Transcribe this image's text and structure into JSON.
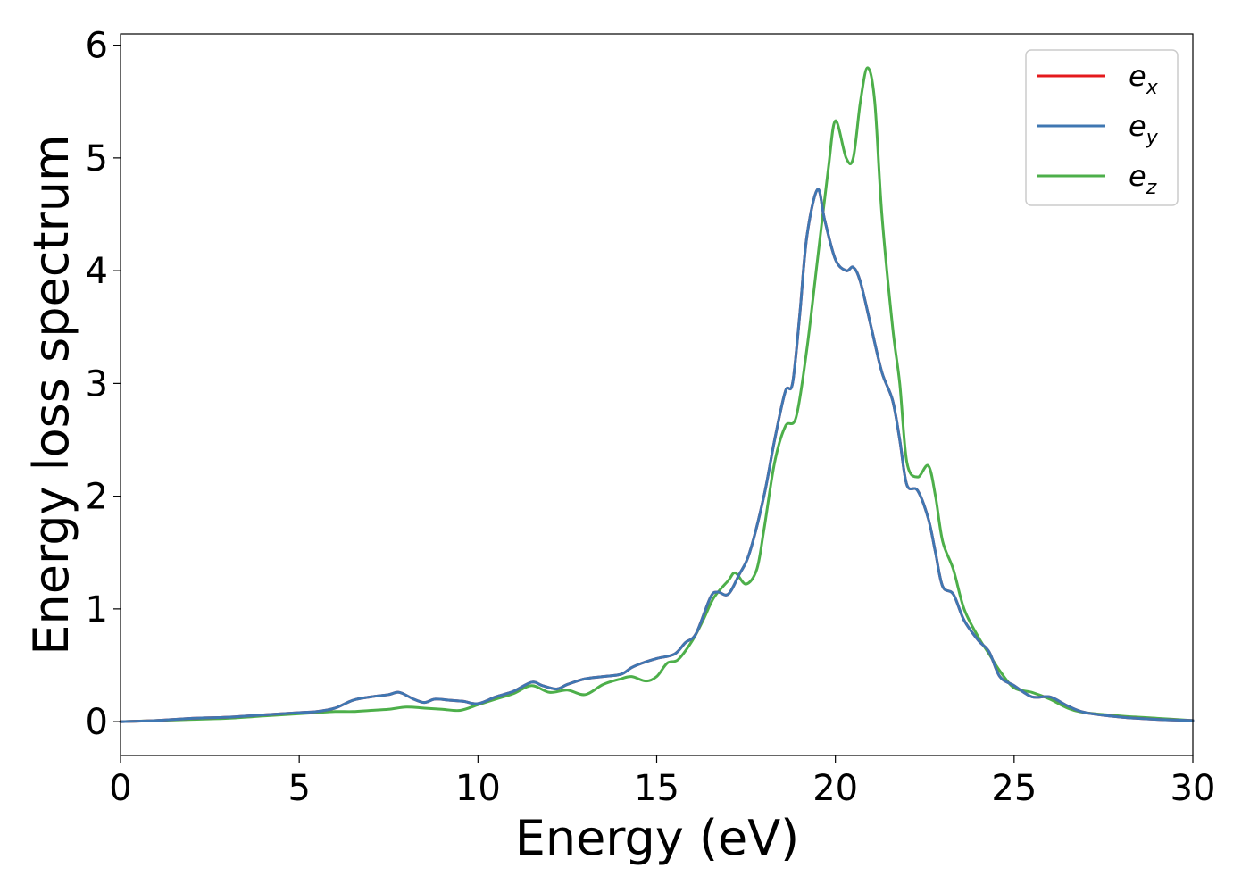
{
  "chart_data": {
    "type": "line",
    "xlabel": "Energy (eV)",
    "ylabel": "Energy loss spectrum",
    "xlim": [
      0,
      30
    ],
    "ylim": [
      -0.3,
      6.1
    ],
    "xticks": [
      0,
      5,
      10,
      15,
      20,
      25,
      30
    ],
    "xtick_labels": [
      "0",
      "5",
      "10",
      "15",
      "20",
      "25",
      "30"
    ],
    "yticks": [
      0,
      1,
      2,
      3,
      4,
      5,
      6
    ],
    "ytick_labels": [
      "0",
      "1",
      "2",
      "3",
      "4",
      "5",
      "6"
    ],
    "grid": false,
    "legend_position": "top-right",
    "series": [
      {
        "name": "e",
        "subscript": "x",
        "color": "#e41a1c",
        "x": [
          0,
          1,
          2,
          3,
          4,
          5,
          5.5,
          6,
          6.5,
          7,
          7.5,
          7.8,
          8.2,
          8.5,
          8.8,
          9.2,
          9.6,
          10,
          10.5,
          11,
          11.5,
          11.8,
          12.2,
          12.5,
          13,
          13.5,
          14,
          14.3,
          14.6,
          15,
          15.5,
          15.8,
          16.1,
          16.5,
          16.7,
          17,
          17.3,
          17.6,
          18,
          18.3,
          18.6,
          18.8,
          19,
          19.2,
          19.5,
          19.7,
          20,
          20.3,
          20.5,
          20.7,
          21,
          21.3,
          21.6,
          21.8,
          22,
          22.3,
          22.6,
          22.8,
          23,
          23.3,
          23.6,
          24,
          24.3,
          24.6,
          25,
          25.5,
          26,
          26.5,
          27,
          28,
          29,
          30
        ],
        "y": [
          0,
          0.01,
          0.03,
          0.04,
          0.06,
          0.08,
          0.09,
          0.12,
          0.19,
          0.22,
          0.24,
          0.26,
          0.2,
          0.17,
          0.2,
          0.19,
          0.18,
          0.16,
          0.22,
          0.27,
          0.35,
          0.32,
          0.29,
          0.33,
          0.38,
          0.4,
          0.42,
          0.48,
          0.52,
          0.56,
          0.6,
          0.7,
          0.78,
          1.1,
          1.15,
          1.13,
          1.3,
          1.5,
          2.0,
          2.5,
          2.93,
          3.0,
          3.6,
          4.3,
          4.72,
          4.45,
          4.1,
          4.0,
          4.03,
          3.9,
          3.5,
          3.1,
          2.85,
          2.5,
          2.1,
          2.05,
          1.8,
          1.5,
          1.2,
          1.13,
          0.9,
          0.72,
          0.62,
          0.4,
          0.32,
          0.22,
          0.22,
          0.14,
          0.08,
          0.04,
          0.02,
          0.01
        ]
      },
      {
        "name": "e",
        "subscript": "y",
        "color": "#3f77b2",
        "x": [
          0,
          1,
          2,
          3,
          4,
          5,
          5.5,
          6,
          6.5,
          7,
          7.5,
          7.8,
          8.2,
          8.5,
          8.8,
          9.2,
          9.6,
          10,
          10.5,
          11,
          11.5,
          11.8,
          12.2,
          12.5,
          13,
          13.5,
          14,
          14.3,
          14.6,
          15,
          15.5,
          15.8,
          16.1,
          16.5,
          16.7,
          17,
          17.3,
          17.6,
          18,
          18.3,
          18.6,
          18.8,
          19,
          19.2,
          19.5,
          19.7,
          20,
          20.3,
          20.5,
          20.7,
          21,
          21.3,
          21.6,
          21.8,
          22,
          22.3,
          22.6,
          22.8,
          23,
          23.3,
          23.6,
          24,
          24.3,
          24.6,
          25,
          25.5,
          26,
          26.5,
          27,
          28,
          29,
          30
        ],
        "y": [
          0,
          0.01,
          0.03,
          0.04,
          0.06,
          0.08,
          0.09,
          0.12,
          0.19,
          0.22,
          0.24,
          0.26,
          0.2,
          0.17,
          0.2,
          0.19,
          0.18,
          0.16,
          0.22,
          0.27,
          0.35,
          0.32,
          0.29,
          0.33,
          0.38,
          0.4,
          0.42,
          0.48,
          0.52,
          0.56,
          0.6,
          0.7,
          0.78,
          1.1,
          1.15,
          1.13,
          1.3,
          1.5,
          2.0,
          2.5,
          2.93,
          3.0,
          3.6,
          4.3,
          4.72,
          4.45,
          4.1,
          4.0,
          4.03,
          3.9,
          3.5,
          3.1,
          2.85,
          2.5,
          2.1,
          2.05,
          1.8,
          1.5,
          1.2,
          1.13,
          0.9,
          0.72,
          0.62,
          0.4,
          0.32,
          0.22,
          0.22,
          0.14,
          0.08,
          0.04,
          0.02,
          0.01
        ]
      },
      {
        "name": "e",
        "subscript": "z",
        "color": "#4daf4a",
        "x": [
          0,
          1,
          2,
          3,
          4,
          5,
          5.5,
          6,
          6.5,
          7,
          7.5,
          8,
          8.5,
          9,
          9.5,
          10,
          10.5,
          11,
          11.5,
          12,
          12.5,
          13,
          13.5,
          14,
          14.3,
          14.7,
          15,
          15.3,
          15.6,
          16,
          16.3,
          16.6,
          17,
          17.2,
          17.5,
          17.8,
          18,
          18.3,
          18.6,
          18.9,
          19.2,
          19.5,
          19.8,
          20,
          20.3,
          20.5,
          20.7,
          20.9,
          21.1,
          21.3,
          21.6,
          21.8,
          22,
          22.3,
          22.6,
          22.8,
          23,
          23.3,
          23.6,
          24,
          24.3,
          24.6,
          25,
          25.5,
          26,
          26.5,
          27,
          28,
          29,
          30
        ],
        "y": [
          0,
          0.01,
          0.02,
          0.03,
          0.05,
          0.07,
          0.08,
          0.09,
          0.09,
          0.1,
          0.11,
          0.13,
          0.12,
          0.11,
          0.1,
          0.15,
          0.2,
          0.25,
          0.32,
          0.26,
          0.28,
          0.24,
          0.33,
          0.38,
          0.4,
          0.36,
          0.4,
          0.52,
          0.55,
          0.72,
          0.9,
          1.1,
          1.25,
          1.32,
          1.22,
          1.35,
          1.7,
          2.3,
          2.62,
          2.7,
          3.3,
          4.1,
          4.9,
          5.33,
          5.0,
          5.0,
          5.5,
          5.8,
          5.5,
          4.5,
          3.5,
          3.0,
          2.3,
          2.17,
          2.27,
          2.0,
          1.6,
          1.35,
          1.0,
          0.75,
          0.6,
          0.45,
          0.3,
          0.26,
          0.2,
          0.12,
          0.08,
          0.05,
          0.03,
          0.01
        ]
      }
    ]
  }
}
